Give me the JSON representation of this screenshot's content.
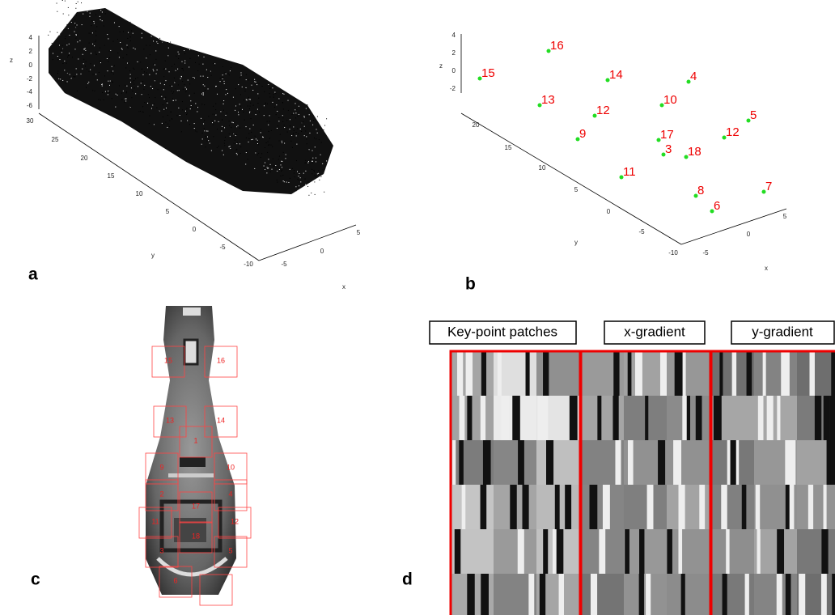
{
  "panels": {
    "a": {
      "letter": "a",
      "zlabel": "z",
      "ylabel": "y",
      "xlabel": "x",
      "zticks": [
        4,
        2,
        0,
        -2,
        -4,
        -6
      ],
      "yticks": [
        30,
        25,
        20,
        15,
        10,
        5,
        0,
        -5,
        -10
      ],
      "xticks": [
        -5,
        0,
        5
      ]
    },
    "b": {
      "letter": "b",
      "zlabel": "z",
      "ylabel": "y",
      "xlabel": "x",
      "zticks": [
        4,
        2,
        0,
        -2
      ],
      "yticks": [
        20,
        15,
        10,
        5,
        0,
        -5,
        -10
      ],
      "xticks": [
        -5,
        0,
        5
      ],
      "points": [
        15,
        16,
        14,
        4,
        13,
        12,
        10,
        5,
        9,
        17,
        12,
        3,
        18,
        11,
        8,
        7,
        6
      ]
    },
    "c": {
      "letter": "c",
      "boxes": [
        15,
        16,
        13,
        14,
        1,
        9,
        10,
        2,
        4,
        17,
        11,
        12,
        18,
        3,
        5,
        6
      ]
    },
    "d": {
      "letter": "d",
      "headers": [
        "Key-point patches",
        "x-gradient",
        "y-gradient"
      ]
    }
  }
}
